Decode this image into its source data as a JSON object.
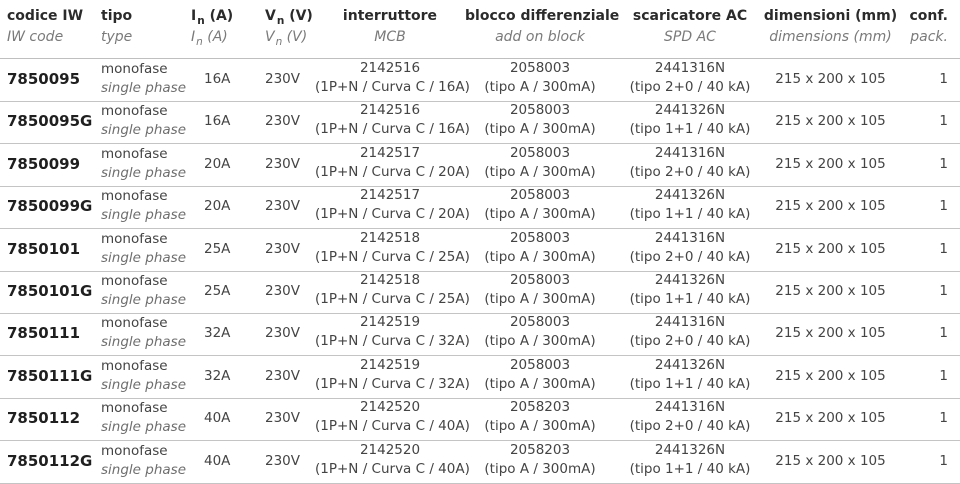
{
  "header": {
    "codice": {
      "main": "codice IW",
      "sub": "IW code"
    },
    "tipo": {
      "main": "tipo",
      "sub": "type"
    },
    "in": {
      "main_a": "I",
      "main_sub": "n",
      "main_b": " (A)",
      "sub_a": "I",
      "sub_sub": "n",
      "sub_b": " (A)"
    },
    "vn": {
      "main_a": "V",
      "main_sub": "n",
      "main_b": " (V)",
      "sub_a": "V",
      "sub_sub": "n",
      "sub_b": " (V)"
    },
    "interruttore": {
      "main": "interruttore",
      "sub": "MCB"
    },
    "blocco": {
      "main": "blocco differenziale",
      "sub": "add on block"
    },
    "scaricatore": {
      "main": "scaricatore AC",
      "sub": "SPD AC"
    },
    "dimensioni": {
      "main": "dimensioni (mm)",
      "sub": "dimensions (mm)"
    },
    "conf": {
      "main": "conf.",
      "sub": "pack."
    }
  },
  "rows": [
    {
      "code": "7850095",
      "tipo_it": "monofase",
      "tipo_en": "single phase",
      "in": "16A",
      "vn": "230V",
      "mcb_code": "2142516",
      "mcb_desc": "(1P+N / Curva C / 16A)",
      "block_code": "2058003",
      "block_desc": "(tipo A / 300mA)",
      "spd_code": "2441316N",
      "spd_desc": "(tipo 2+0 / 40 kA)",
      "dim": "215 x 200 x 105",
      "pack": "1"
    },
    {
      "code": "7850095G",
      "tipo_it": "monofase",
      "tipo_en": "single phase",
      "in": "16A",
      "vn": "230V",
      "mcb_code": "2142516",
      "mcb_desc": "(1P+N / Curva C / 16A)",
      "block_code": "2058003",
      "block_desc": "(tipo A / 300mA)",
      "spd_code": "2441326N",
      "spd_desc": "(tipo 1+1 / 40 kA)",
      "dim": "215 x 200 x 105",
      "pack": "1"
    },
    {
      "code": "7850099",
      "tipo_it": "monofase",
      "tipo_en": "single phase",
      "in": "20A",
      "vn": "230V",
      "mcb_code": "2142517",
      "mcb_desc": "(1P+N / Curva C / 20A)",
      "block_code": "2058003",
      "block_desc": "(tipo A / 300mA)",
      "spd_code": "2441316N",
      "spd_desc": "(tipo 2+0 / 40 kA)",
      "dim": "215 x 200 x 105",
      "pack": "1"
    },
    {
      "code": "7850099G",
      "tipo_it": "monofase",
      "tipo_en": "single phase",
      "in": "20A",
      "vn": "230V",
      "mcb_code": "2142517",
      "mcb_desc": "(1P+N / Curva C / 20A)",
      "block_code": "2058003",
      "block_desc": "(tipo A / 300mA)",
      "spd_code": "2441326N",
      "spd_desc": "(tipo 1+1 / 40 kA)",
      "dim": "215 x 200 x 105",
      "pack": "1"
    },
    {
      "code": "7850101",
      "tipo_it": "monofase",
      "tipo_en": "single phase",
      "in": "25A",
      "vn": "230V",
      "mcb_code": "2142518",
      "mcb_desc": "(1P+N / Curva C / 25A)",
      "block_code": "2058003",
      "block_desc": "(tipo A / 300mA)",
      "spd_code": "2441316N",
      "spd_desc": "(tipo 2+0 / 40 kA)",
      "dim": "215 x 200 x 105",
      "pack": "1"
    },
    {
      "code": "7850101G",
      "tipo_it": "monofase",
      "tipo_en": "single phase",
      "in": "25A",
      "vn": "230V",
      "mcb_code": "2142518",
      "mcb_desc": "(1P+N / Curva C / 25A)",
      "block_code": "2058003",
      "block_desc": "(tipo A / 300mA)",
      "spd_code": "2441326N",
      "spd_desc": "(tipo 1+1 / 40 kA)",
      "dim": "215 x 200 x 105",
      "pack": "1"
    },
    {
      "code": "7850111",
      "tipo_it": "monofase",
      "tipo_en": "single phase",
      "in": "32A",
      "vn": "230V",
      "mcb_code": "2142519",
      "mcb_desc": "(1P+N / Curva C / 32A)",
      "block_code": "2058003",
      "block_desc": "(tipo A / 300mA)",
      "spd_code": "2441316N",
      "spd_desc": "(tipo 2+0 / 40 kA)",
      "dim": "215 x 200 x 105",
      "pack": "1"
    },
    {
      "code": "7850111G",
      "tipo_it": "monofase",
      "tipo_en": "single phase",
      "in": "32A",
      "vn": "230V",
      "mcb_code": "2142519",
      "mcb_desc": "(1P+N / Curva C / 32A)",
      "block_code": "2058003",
      "block_desc": "(tipo A / 300mA)",
      "spd_code": "2441326N",
      "spd_desc": "(tipo 1+1 / 40 kA)",
      "dim": "215 x 200 x 105",
      "pack": "1"
    },
    {
      "code": "7850112",
      "tipo_it": "monofase",
      "tipo_en": "single phase",
      "in": "40A",
      "vn": "230V",
      "mcb_code": "2142520",
      "mcb_desc": "(1P+N / Curva C / 40A)",
      "block_code": "2058203",
      "block_desc": "(tipo A / 300mA)",
      "spd_code": "2441316N",
      "spd_desc": "(tipo 2+0 / 40 kA)",
      "dim": "215 x 200 x 105",
      "pack": "1"
    },
    {
      "code": "7850112G",
      "tipo_it": "monofase",
      "tipo_en": "single phase",
      "in": "40A",
      "vn": "230V",
      "mcb_code": "2142520",
      "mcb_desc": "(1P+N / Curva C / 40A)",
      "block_code": "2058203",
      "block_desc": "(tipo A / 300mA)",
      "spd_code": "2441326N",
      "spd_desc": "(tipo 1+1 / 40 kA)",
      "dim": "215 x 200 x 105",
      "pack": "1"
    }
  ]
}
